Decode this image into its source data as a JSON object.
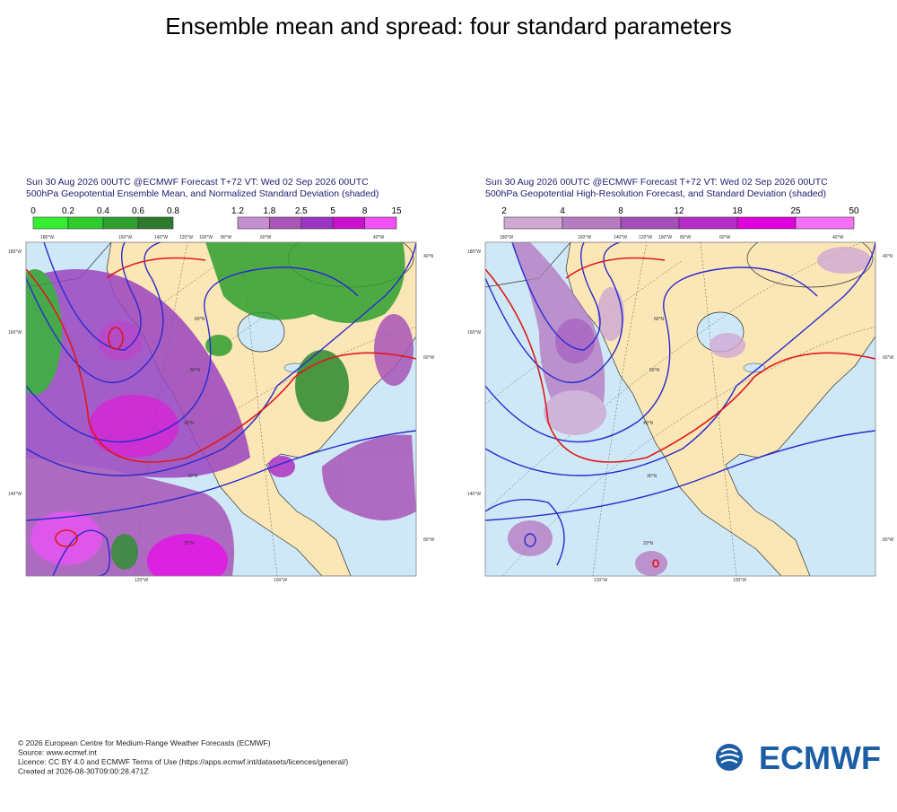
{
  "title": "Ensemble mean and spread: four standard parameters",
  "panels": [
    {
      "header": [
        "Sun 30 Aug 2026 00UTC @ECMWF Forecast T+72 VT: Wed 02 Sep 2026 00UTC",
        "500hPa Geopotential Ensemble Mean, and Normalized Standard Deviation (shaded)"
      ],
      "legends": [
        {
          "ticks": [
            "0",
            "0.2",
            "0.4",
            "0.6",
            "0.8"
          ],
          "colors": [
            "#33ee33",
            "#2ecc2e",
            "#2fa02f",
            "#2d7a2d"
          ]
        },
        {
          "ticks": [
            "1.2",
            "1.8",
            "2.5",
            "5",
            "8",
            "15"
          ],
          "colors": [
            "#c58fcf",
            "#a855b8",
            "#9b35c4",
            "#cc11cc",
            "#f050f5"
          ]
        }
      ],
      "grid_labels": [
        "180°W",
        "160°W",
        "140°W",
        "120°W",
        "100°W",
        "80°W",
        "60°W",
        "40°W",
        "180°W",
        "160°W",
        "140°W",
        "40°N",
        "60°W",
        "80°W",
        "120°W",
        "100°W",
        "60°N",
        "50°N",
        "40°N",
        "30°N",
        "20°N"
      ]
    },
    {
      "header": [
        "Sun 30 Aug 2026 00UTC @ECMWF Forecast T+72 VT: Wed 02 Sep 2026 00UTC",
        "500hPa Geopotential High-Resolution Forecast, and Standard Deviation (shaded)"
      ],
      "legends": [
        {
          "ticks": [
            "2",
            "4",
            "8",
            "12",
            "18",
            "25",
            "50"
          ],
          "colors": [
            "#cfa8d4",
            "#b57cc2",
            "#a44fb8",
            "#b52ec4",
            "#dd00dd",
            "#f56ff7"
          ]
        }
      ],
      "grid_labels": [
        "180°W",
        "160°W",
        "140°W",
        "120°W",
        "100°W",
        "80°W",
        "60°W",
        "40°W",
        "180°W",
        "160°W",
        "140°W",
        "40°N",
        "60°W",
        "80°W",
        "120°W",
        "100°W",
        "60°N",
        "50°N",
        "40°N",
        "30°N",
        "20°N"
      ]
    }
  ],
  "footer": [
    "© 2026 European Centre for Medium-Range Weather Forecasts (ECMWF)",
    "Source: www.ecmwf.int",
    "Licence: CC BY 4.0 and ECMWF Terms of Use (https://apps.ecmwf.int/datasets/licences/general/)",
    "Created at 2026-08-30T09:00:28.471Z"
  ],
  "logo": "ECMWF"
}
